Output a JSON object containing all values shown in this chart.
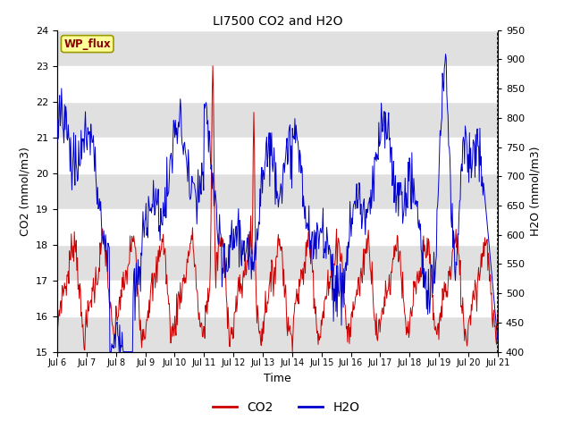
{
  "title": "LI7500 CO2 and H2O",
  "xlabel": "Time",
  "ylabel_left": "CO2 (mmol/m3)",
  "ylabel_right": "H2O (mmol/m3)",
  "ylim_left": [
    15.0,
    24.0
  ],
  "ylim_right": [
    400,
    950
  ],
  "xtick_labels": [
    "Jul 6",
    "Jul 7",
    "Jul 8",
    "Jul 9",
    "Jul 10",
    "Jul 11",
    "Jul 12",
    "Jul 13",
    "Jul 14",
    "Jul 15",
    "Jul 16",
    "Jul 17",
    "Jul 18",
    "Jul 19",
    "Jul 20",
    "Jul 21"
  ],
  "site_label": "WP_flux",
  "bg_band_color": "#e0e0e0",
  "line_color_co2": "#cc0000",
  "line_color_h2o": "#0000cc",
  "legend_labels": [
    "CO2",
    "H2O"
  ],
  "yticks_left": [
    15.0,
    16.0,
    17.0,
    18.0,
    19.0,
    20.0,
    21.0,
    22.0,
    23.0,
    24.0
  ],
  "yticks_right": [
    400,
    450,
    500,
    550,
    600,
    650,
    700,
    750,
    800,
    850,
    900,
    950
  ]
}
